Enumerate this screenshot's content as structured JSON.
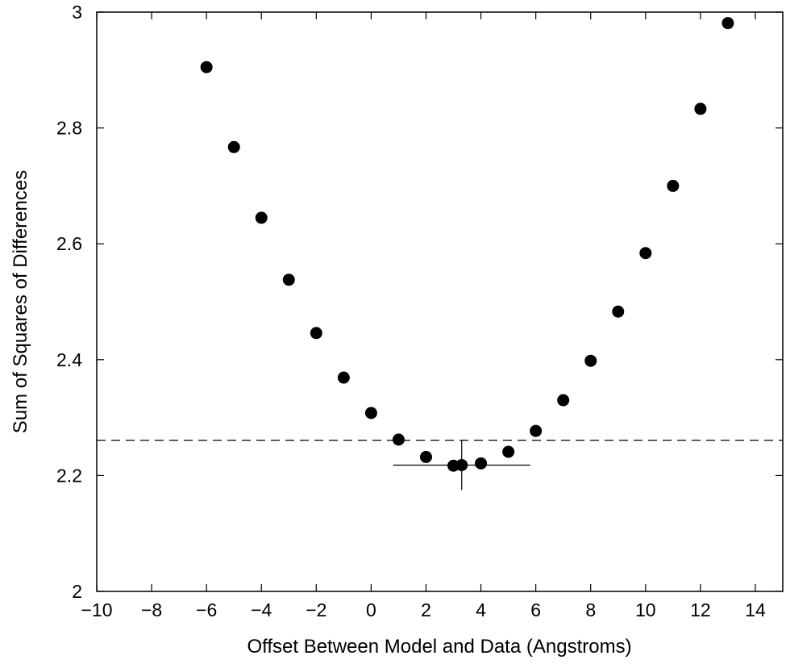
{
  "chart_data": {
    "type": "scatter",
    "title": "",
    "xlabel": "Offset Between Model and Data (Angstroms)",
    "ylabel": "Sum of Squares of Differences",
    "xlim": [
      -10,
      15
    ],
    "ylim": [
      2,
      3
    ],
    "xticks": [
      -10,
      -8,
      -6,
      -4,
      -2,
      0,
      2,
      4,
      6,
      8,
      10,
      12,
      14
    ],
    "xtick_labels": [
      "−10",
      "−8",
      "−6",
      "−4",
      "−2",
      "0",
      "2",
      "4",
      "6",
      "8",
      "10",
      "12",
      "14"
    ],
    "yticks": [
      2,
      2.2,
      2.4,
      2.6,
      2.8,
      3
    ],
    "ytick_labels": [
      "2",
      "2.2",
      "2.4",
      "2.6",
      "2.8",
      "3"
    ],
    "grid": false,
    "series": [
      {
        "points": [
          [
            -6,
            2.905
          ],
          [
            -5,
            2.767
          ],
          [
            -4,
            2.645
          ],
          [
            -3,
            2.538
          ],
          [
            -2,
            2.446
          ],
          [
            -1,
            2.369
          ],
          [
            0,
            2.308
          ],
          [
            1,
            2.262
          ],
          [
            2,
            2.232
          ],
          [
            3,
            2.217
          ],
          [
            3.3,
            2.218
          ],
          [
            4,
            2.221
          ],
          [
            5,
            2.241
          ],
          [
            6,
            2.277
          ],
          [
            7,
            2.33
          ],
          [
            8,
            2.398
          ],
          [
            9,
            2.483
          ],
          [
            10,
            2.584
          ],
          [
            11,
            2.7
          ],
          [
            12,
            2.833
          ],
          [
            13,
            2.981
          ]
        ],
        "color": "#000000"
      }
    ],
    "reference_line": {
      "y": 2.261,
      "style": "dashed"
    },
    "error_cross": {
      "x": 3.3,
      "y": 2.218,
      "x_range": [
        0.8,
        5.8
      ],
      "y_range": [
        2.175,
        2.261
      ]
    }
  }
}
